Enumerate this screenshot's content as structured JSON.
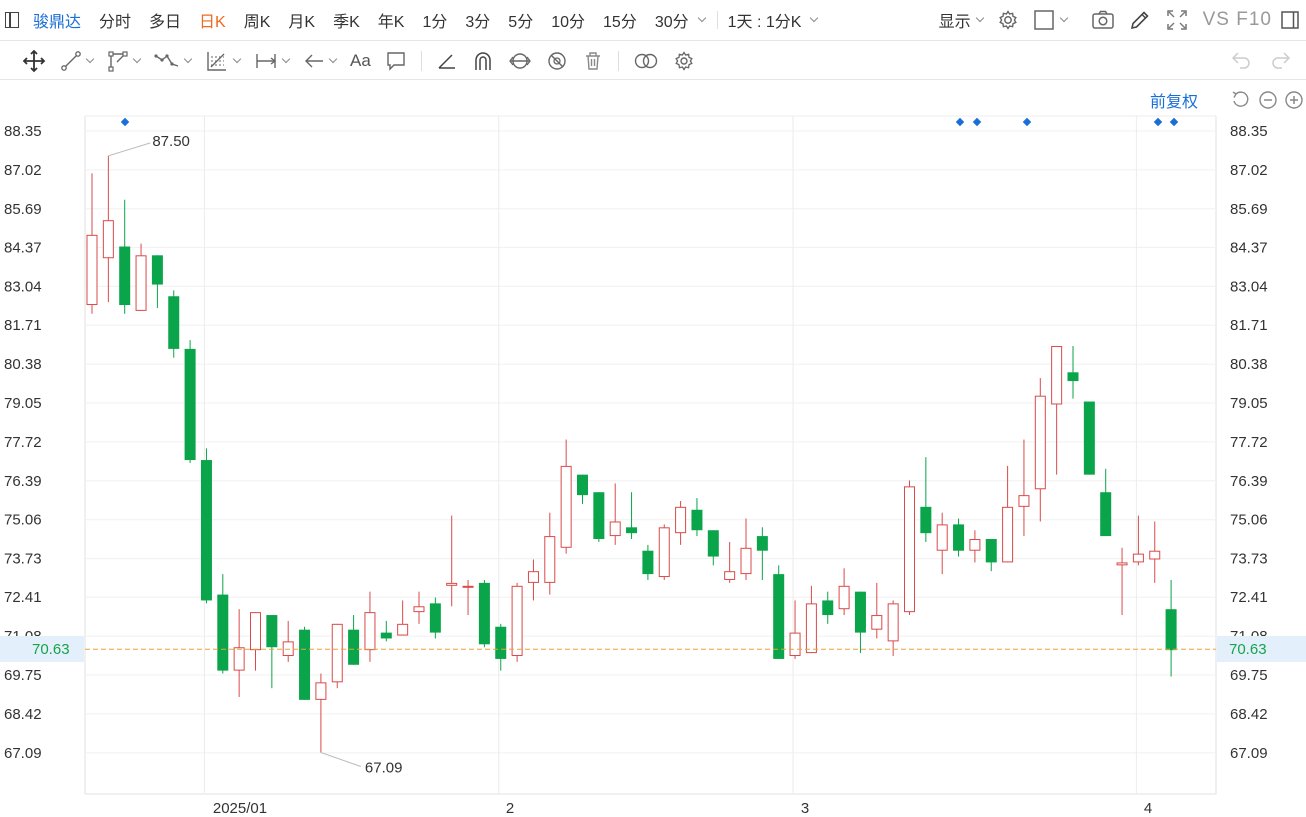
{
  "toolbar": {
    "stock_name": "骏鼎达",
    "periods": [
      "分时",
      "多日",
      "日K",
      "周K",
      "月K",
      "季K",
      "年K",
      "1分",
      "3分",
      "5分",
      "10分",
      "15分",
      "30分"
    ],
    "active_period": "日K",
    "range_label": "1天 : 1分K",
    "display_label": "显示",
    "vs_f10": "VS F10"
  },
  "drawing_tools": {
    "text_tool_label": "Aa"
  },
  "chart_header": {
    "adjust_label": "前复权"
  },
  "colors": {
    "up": "#d94a4a",
    "down": "#0aa44a",
    "accent": "#1a6fd6",
    "active_period": "#ee6a1f",
    "current_line": "#e8a33c"
  },
  "chart_data": {
    "type": "candlestick",
    "y_ticks": [
      "88.35",
      "87.02",
      "85.69",
      "84.37",
      "83.04",
      "81.71",
      "80.38",
      "79.05",
      "77.72",
      "76.39",
      "75.06",
      "73.73",
      "72.41",
      "71.08",
      "69.75",
      "68.42",
      "67.09"
    ],
    "ylim": [
      66.0,
      89.2
    ],
    "x_labels": [
      "2025/01",
      "2",
      "3",
      "4"
    ],
    "current_price": "70.63",
    "high_annotation": "87.50",
    "low_annotation": "67.09",
    "candles": [
      {
        "o": 82.4,
        "c": 84.8,
        "h": 86.9,
        "l": 82.1
      },
      {
        "o": 84.0,
        "c": 85.3,
        "h": 87.5,
        "l": 82.5
      },
      {
        "o": 84.4,
        "c": 82.4,
        "h": 86.0,
        "l": 82.1
      },
      {
        "o": 82.2,
        "c": 84.1,
        "h": 84.5,
        "l": 82.2
      },
      {
        "o": 84.1,
        "c": 83.1,
        "h": 84.1,
        "l": 82.3
      },
      {
        "o": 82.7,
        "c": 80.9,
        "h": 82.9,
        "l": 80.6
      },
      {
        "o": 80.9,
        "c": 77.1,
        "h": 81.2,
        "l": 77.0
      },
      {
        "o": 77.1,
        "c": 72.3,
        "h": 77.5,
        "l": 72.2
      },
      {
        "o": 72.5,
        "c": 69.9,
        "h": 73.2,
        "l": 69.8
      },
      {
        "o": 69.9,
        "c": 70.7,
        "h": 72.0,
        "l": 69.0
      },
      {
        "o": 70.6,
        "c": 71.9,
        "h": 71.9,
        "l": 69.9
      },
      {
        "o": 71.8,
        "c": 70.7,
        "h": 71.8,
        "l": 69.3
      },
      {
        "o": 70.4,
        "c": 70.9,
        "h": 71.6,
        "l": 70.2
      },
      {
        "o": 71.3,
        "c": 68.9,
        "h": 71.4,
        "l": 68.9
      },
      {
        "o": 68.9,
        "c": 69.5,
        "h": 69.8,
        "l": 67.1
      },
      {
        "o": 69.5,
        "c": 71.5,
        "h": 71.5,
        "l": 69.3
      },
      {
        "o": 71.3,
        "c": 70.1,
        "h": 71.8,
        "l": 70.1
      },
      {
        "o": 70.6,
        "c": 71.9,
        "h": 72.6,
        "l": 70.2
      },
      {
        "o": 71.2,
        "c": 71.0,
        "h": 71.6,
        "l": 70.9
      },
      {
        "o": 71.1,
        "c": 71.5,
        "h": 72.3,
        "l": 71.1
      },
      {
        "o": 71.9,
        "c": 72.1,
        "h": 72.6,
        "l": 71.5
      },
      {
        "o": 72.2,
        "c": 71.2,
        "h": 72.4,
        "l": 71.0
      },
      {
        "o": 72.8,
        "c": 72.9,
        "h": 75.2,
        "l": 72.1
      },
      {
        "o": 72.8,
        "c": 72.8,
        "h": 73.0,
        "l": 71.8
      },
      {
        "o": 72.9,
        "c": 70.8,
        "h": 73.0,
        "l": 70.7
      },
      {
        "o": 71.4,
        "c": 70.3,
        "h": 71.5,
        "l": 69.9
      },
      {
        "o": 70.4,
        "c": 72.8,
        "h": 72.9,
        "l": 70.2
      },
      {
        "o": 72.9,
        "c": 73.3,
        "h": 73.7,
        "l": 72.3
      },
      {
        "o": 72.9,
        "c": 74.5,
        "h": 75.3,
        "l": 72.5
      },
      {
        "o": 74.1,
        "c": 76.9,
        "h": 77.8,
        "l": 73.9
      },
      {
        "o": 76.6,
        "c": 75.9,
        "h": 76.6,
        "l": 75.6
      },
      {
        "o": 76.0,
        "c": 74.4,
        "h": 76.0,
        "l": 74.3
      },
      {
        "o": 74.5,
        "c": 75.0,
        "h": 76.3,
        "l": 74.2
      },
      {
        "o": 74.8,
        "c": 74.6,
        "h": 76.0,
        "l": 74.4
      },
      {
        "o": 74.0,
        "c": 73.2,
        "h": 74.2,
        "l": 73.0
      },
      {
        "o": 73.1,
        "c": 74.8,
        "h": 74.9,
        "l": 73.0
      },
      {
        "o": 74.6,
        "c": 75.5,
        "h": 75.7,
        "l": 74.2
      },
      {
        "o": 75.4,
        "c": 74.7,
        "h": 75.8,
        "l": 74.5
      },
      {
        "o": 74.7,
        "c": 73.8,
        "h": 74.7,
        "l": 73.5
      },
      {
        "o": 73.0,
        "c": 73.3,
        "h": 74.3,
        "l": 72.9
      },
      {
        "o": 73.2,
        "c": 74.1,
        "h": 75.1,
        "l": 73.0
      },
      {
        "o": 74.5,
        "c": 74.0,
        "h": 74.8,
        "l": 73.0
      },
      {
        "o": 73.2,
        "c": 70.3,
        "h": 73.5,
        "l": 70.3
      },
      {
        "o": 70.4,
        "c": 71.2,
        "h": 72.3,
        "l": 70.3
      },
      {
        "o": 70.5,
        "c": 72.2,
        "h": 72.8,
        "l": 70.5
      },
      {
        "o": 72.3,
        "c": 71.8,
        "h": 72.6,
        "l": 71.5
      },
      {
        "o": 72.0,
        "c": 72.8,
        "h": 73.4,
        "l": 71.8
      },
      {
        "o": 72.6,
        "c": 71.2,
        "h": 72.6,
        "l": 70.5
      },
      {
        "o": 71.3,
        "c": 71.8,
        "h": 72.9,
        "l": 71.0
      },
      {
        "o": 70.9,
        "c": 72.2,
        "h": 72.3,
        "l": 70.4
      },
      {
        "o": 71.9,
        "c": 76.2,
        "h": 76.4,
        "l": 71.8
      },
      {
        "o": 75.5,
        "c": 74.6,
        "h": 77.2,
        "l": 74.3
      },
      {
        "o": 74.0,
        "c": 74.9,
        "h": 75.3,
        "l": 73.2
      },
      {
        "o": 74.9,
        "c": 74.0,
        "h": 75.1,
        "l": 73.8
      },
      {
        "o": 74.0,
        "c": 74.4,
        "h": 74.7,
        "l": 73.6
      },
      {
        "o": 74.4,
        "c": 73.6,
        "h": 74.4,
        "l": 73.3
      },
      {
        "o": 73.6,
        "c": 75.5,
        "h": 76.9,
        "l": 73.6
      },
      {
        "o": 75.5,
        "c": 75.9,
        "h": 77.8,
        "l": 74.5
      },
      {
        "o": 76.1,
        "c": 79.3,
        "h": 79.9,
        "l": 75.0
      },
      {
        "o": 79.0,
        "c": 81.0,
        "h": 81.0,
        "l": 76.6
      },
      {
        "o": 80.1,
        "c": 79.8,
        "h": 81.0,
        "l": 79.2
      },
      {
        "o": 79.1,
        "c": 76.6,
        "h": 79.1,
        "l": 76.6
      },
      {
        "o": 76.0,
        "c": 74.5,
        "h": 76.8,
        "l": 74.5
      },
      {
        "o": 73.5,
        "c": 73.6,
        "h": 74.1,
        "l": 71.8
      },
      {
        "o": 73.6,
        "c": 73.9,
        "h": 75.2,
        "l": 73.5
      },
      {
        "o": 73.7,
        "c": 74.0,
        "h": 75.0,
        "l": 72.9
      },
      {
        "o": 72.0,
        "c": 70.6,
        "h": 73.0,
        "l": 69.7
      }
    ]
  }
}
